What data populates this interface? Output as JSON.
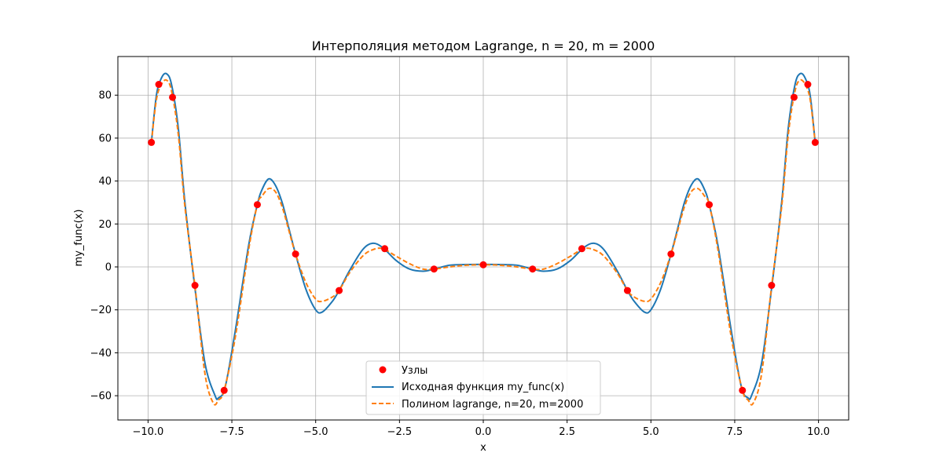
{
  "chart_data": {
    "type": "line",
    "title": "Интерполяция методом Lagrange, n = 20, m = 2000",
    "xlabel": "x",
    "ylabel": "my_func(x)",
    "xlim": [
      -10.9,
      10.9
    ],
    "ylim": [
      -71.3,
      98.0
    ],
    "x_ticks": [
      -10.0,
      -7.5,
      -5.0,
      -2.5,
      0.0,
      2.5,
      5.0,
      7.5,
      10.0
    ],
    "x_tick_labels": [
      "−10.0",
      "−7.5",
      "−5.0",
      "−2.5",
      "0.0",
      "2.5",
      "5.0",
      "7.5",
      "10.0"
    ],
    "y_ticks": [
      -60,
      -40,
      -20,
      0,
      20,
      40,
      60,
      80
    ],
    "y_tick_labels": [
      "−60",
      "−40",
      "−20",
      "0",
      "20",
      "40",
      "60",
      "80"
    ],
    "grid": true,
    "legend_position": "lower center",
    "colors": {
      "nodes": "#ff0000",
      "original": "#1f77b4",
      "poly": "#ff7f0e",
      "grid": "#b0b0b0"
    },
    "series": [
      {
        "name": "Узлы",
        "kind": "scatter",
        "x": [
          -9.9,
          -9.68,
          -9.27,
          -8.6,
          -7.73,
          -6.74,
          -5.6,
          -4.3,
          -2.94,
          -1.47,
          0.0,
          1.47,
          2.94,
          4.3,
          5.6,
          6.74,
          7.73,
          8.6,
          9.27,
          9.68,
          9.9
        ],
        "y": [
          58,
          85,
          79,
          -8.6,
          -57.5,
          29,
          6,
          -11,
          8.5,
          -1,
          1,
          -1,
          8.5,
          -11,
          6,
          29,
          -57.5,
          -8.6,
          79,
          85,
          58
        ]
      },
      {
        "name": "Исходная функция my_func(x)",
        "kind": "line",
        "x": [
          -9.9,
          -9.75,
          -9.6,
          -9.45,
          -9.3,
          -9.1,
          -8.9,
          -8.6,
          -8.3,
          -8.0,
          -7.9,
          -7.7,
          -7.4,
          -7.0,
          -6.74,
          -6.6,
          -6.4,
          -6.2,
          -6.0,
          -5.8,
          -5.6,
          -5.3,
          -5.0,
          -4.8,
          -4.5,
          -4.3,
          -4.0,
          -3.6,
          -3.3,
          -3.0,
          -2.6,
          -2.2,
          -1.8,
          -1.47,
          -1.0,
          -0.5,
          0.0,
          0.5,
          1.0,
          1.47,
          1.8,
          2.2,
          2.6,
          3.0,
          3.3,
          3.6,
          4.0,
          4.3,
          4.5,
          4.8,
          5.0,
          5.3,
          5.6,
          5.8,
          6.0,
          6.2,
          6.4,
          6.6,
          6.74,
          7.0,
          7.4,
          7.7,
          7.9,
          8.0,
          8.3,
          8.6,
          8.9,
          9.1,
          9.3,
          9.45,
          9.6,
          9.75,
          9.9
        ],
        "y": [
          58,
          80,
          88,
          90,
          85,
          65,
          30,
          -10,
          -45,
          -60,
          -61,
          -56,
          -30,
          10,
          29,
          36,
          41,
          38,
          30,
          18,
          6,
          -10,
          -20,
          -21,
          -16,
          -11,
          -2,
          8,
          11,
          9,
          3,
          -1,
          -2,
          -1,
          0.8,
          1.1,
          1.2,
          1.1,
          0.8,
          -1,
          -2,
          -1,
          3,
          9,
          11,
          8,
          -2,
          -11,
          -16,
          -21,
          -20,
          -10,
          6,
          18,
          30,
          38,
          41,
          36,
          29,
          10,
          -30,
          -56,
          -61,
          -60,
          -45,
          -10,
          30,
          65,
          85,
          90,
          88,
          80,
          58
        ]
      },
      {
        "name": "Полином lagrange, n=20, m=2000",
        "kind": "dashed-line",
        "x": [
          -9.9,
          -9.75,
          -9.6,
          -9.45,
          -9.3,
          -9.1,
          -8.9,
          -8.6,
          -8.3,
          -8.05,
          -7.9,
          -7.73,
          -7.4,
          -7.0,
          -6.74,
          -6.6,
          -6.4,
          -6.2,
          -6.0,
          -5.8,
          -5.6,
          -5.3,
          -5.0,
          -4.8,
          -4.5,
          -4.3,
          -4.0,
          -3.6,
          -3.3,
          -3.0,
          -2.6,
          -2.2,
          -1.8,
          -1.47,
          -1.0,
          -0.5,
          0.0,
          0.5,
          1.0,
          1.47,
          1.8,
          2.2,
          2.6,
          3.0,
          3.3,
          3.6,
          4.0,
          4.3,
          4.5,
          4.8,
          5.0,
          5.3,
          5.6,
          5.8,
          6.0,
          6.2,
          6.4,
          6.6,
          6.74,
          7.0,
          7.4,
          7.73,
          7.9,
          8.05,
          8.3,
          8.6,
          8.9,
          9.1,
          9.3,
          9.45,
          9.6,
          9.75,
          9.9
        ],
        "y": [
          58,
          78,
          85,
          87,
          82,
          62,
          28,
          -9,
          -50,
          -63.5,
          -62,
          -57.5,
          -33,
          8,
          29,
          33,
          36.5,
          35,
          28,
          17,
          6,
          -7,
          -15,
          -16,
          -14,
          -11,
          -3,
          5,
          8,
          8.5,
          5,
          1.5,
          -1,
          -1,
          0,
          0.8,
          1,
          0.8,
          0,
          -1,
          -1,
          1.5,
          5,
          8.5,
          8,
          5,
          -3,
          -11,
          -14,
          -16,
          -15,
          -7,
          6,
          17,
          28,
          35,
          36.5,
          33,
          29,
          8,
          -33,
          -57.5,
          -62,
          -63.5,
          -50,
          -9,
          28,
          62,
          82,
          87,
          85,
          78,
          58
        ]
      }
    ]
  }
}
